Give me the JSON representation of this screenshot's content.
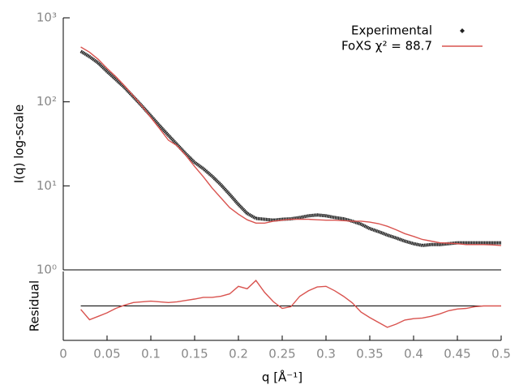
{
  "chart_data": [
    {
      "type": "line",
      "ylabel": "I(q) log-scale",
      "log_y": true,
      "legend": "upper right",
      "xlim": [
        0,
        0.5
      ],
      "ylim": [
        1,
        1000
      ],
      "yticks": [
        {
          "value": 1,
          "label": "10⁰"
        },
        {
          "value": 10,
          "label": "10¹"
        },
        {
          "value": 100,
          "label": "10²"
        },
        {
          "value": 1000,
          "label": "10³"
        }
      ],
      "x": [
        0.02,
        0.03,
        0.04,
        0.05,
        0.06,
        0.07,
        0.08,
        0.09,
        0.1,
        0.11,
        0.12,
        0.13,
        0.14,
        0.15,
        0.16,
        0.17,
        0.18,
        0.19,
        0.2,
        0.21,
        0.22,
        0.23,
        0.24,
        0.25,
        0.26,
        0.27,
        0.28,
        0.29,
        0.3,
        0.31,
        0.32,
        0.33,
        0.34,
        0.35,
        0.36,
        0.37,
        0.38,
        0.39,
        0.4,
        0.41,
        0.42,
        0.43,
        0.44,
        0.45,
        0.46,
        0.47,
        0.48,
        0.49,
        0.5
      ],
      "series": [
        {
          "name": "Experimental",
          "color": "#222222",
          "marker": "points",
          "values": [
            400,
            345,
            290,
            230,
            185,
            148,
            115,
            89,
            68,
            52,
            40,
            31,
            24,
            19,
            16,
            13,
            10.3,
            7.9,
            6,
            4.7,
            4.1,
            4,
            3.9,
            4,
            4.05,
            4.2,
            4.4,
            4.5,
            4.4,
            4.2,
            4.05,
            3.8,
            3.5,
            3.1,
            2.85,
            2.6,
            2.4,
            2.2,
            2.05,
            1.95,
            2,
            2,
            2.05,
            2.1,
            2.1,
            2.1,
            2.1,
            2.1,
            2.1
          ]
        },
        {
          "name": "FoXS χ² = 88.7",
          "color": "#d9534f",
          "marker": "line",
          "values": [
            450,
            390,
            320,
            250,
            200,
            155,
            118,
            89,
            65,
            48,
            35,
            30,
            23,
            17,
            12.8,
            9.4,
            7.2,
            5.5,
            4.6,
            3.95,
            3.6,
            3.6,
            3.8,
            3.9,
            4,
            4,
            4,
            3.95,
            3.9,
            3.9,
            3.85,
            3.8,
            3.8,
            3.7,
            3.55,
            3.3,
            3,
            2.7,
            2.5,
            2.3,
            2.2,
            2.1,
            2.08,
            2.05,
            2,
            2,
            2,
            1.98,
            1.95
          ]
        }
      ]
    },
    {
      "type": "line",
      "ylabel": "Residual",
      "xlabel": "q [Å⁻¹]",
      "xlim": [
        0,
        0.5
      ],
      "ylim": [
        -1,
        1
      ],
      "hline": 0,
      "xticks": [
        0,
        0.05,
        0.1,
        0.15,
        0.2,
        0.25,
        0.3,
        0.35,
        0.4,
        0.45,
        0.5
      ],
      "x": [
        0.02,
        0.03,
        0.04,
        0.05,
        0.06,
        0.07,
        0.08,
        0.09,
        0.1,
        0.11,
        0.12,
        0.13,
        0.14,
        0.15,
        0.16,
        0.17,
        0.18,
        0.19,
        0.2,
        0.21,
        0.22,
        0.23,
        0.24,
        0.25,
        0.26,
        0.27,
        0.28,
        0.29,
        0.3,
        0.31,
        0.32,
        0.33,
        0.34,
        0.35,
        0.36,
        0.37,
        0.38,
        0.39,
        0.4,
        0.41,
        0.42,
        0.43,
        0.44,
        0.45,
        0.46,
        0.47,
        0.48,
        0.49,
        0.5
      ],
      "series": [
        {
          "color": "#d9534f",
          "values": [
            -0.1,
            -0.4,
            -0.3,
            -0.2,
            -0.07,
            0.02,
            0.1,
            0.12,
            0.14,
            0.12,
            0.1,
            0.12,
            0.16,
            0.2,
            0.25,
            0.25,
            0.28,
            0.35,
            0.57,
            0.5,
            0.74,
            0.39,
            0.12,
            -0.07,
            -0.02,
            0.28,
            0.44,
            0.55,
            0.57,
            0.44,
            0.28,
            0.09,
            -0.18,
            -0.34,
            -0.48,
            -0.62,
            -0.53,
            -0.41,
            -0.37,
            -0.35,
            -0.3,
            -0.23,
            -0.14,
            -0.09,
            -0.07,
            -0.02,
            0,
            0,
            0
          ]
        }
      ]
    }
  ]
}
